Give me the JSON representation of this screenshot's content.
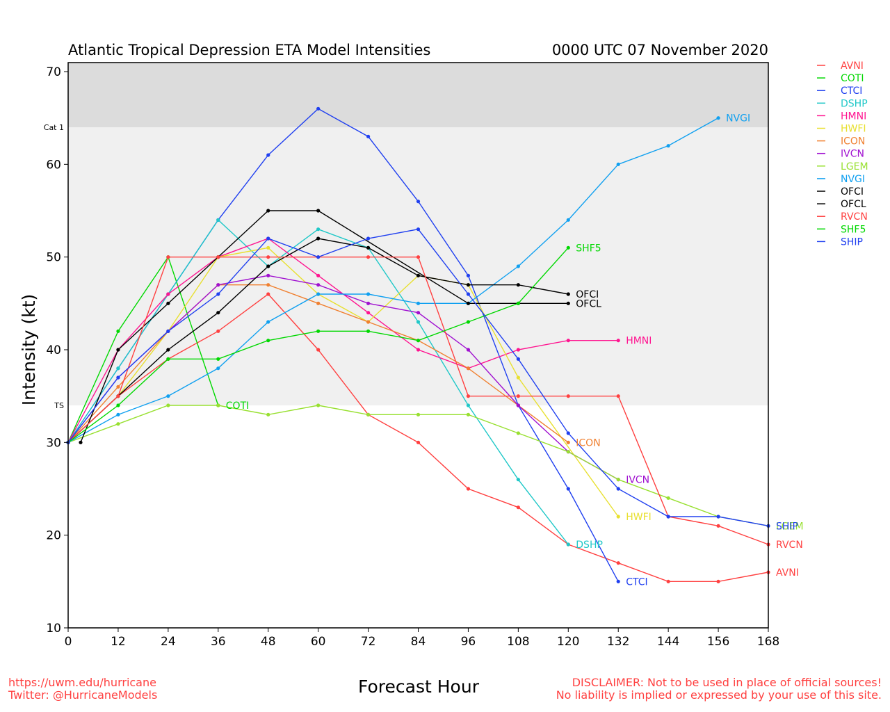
{
  "chart_data": {
    "type": "line",
    "title": "Atlantic Tropical Depression ETA Model Intensities",
    "subtitle": "0000 UTC 07 November 2020",
    "xlabel": "Forecast Hour",
    "ylabel": "Intensity (kt)",
    "xlim": [
      0,
      168
    ],
    "ylim": [
      10,
      72
    ],
    "xticks": [
      0,
      12,
      24,
      36,
      48,
      60,
      72,
      84,
      96,
      108,
      120,
      132,
      144,
      156,
      168
    ],
    "yticks": [
      10,
      20,
      30,
      40,
      50,
      60,
      70
    ],
    "thresholds": [
      {
        "label": "TS",
        "value": 34
      },
      {
        "label": "Cat 1",
        "value": 64
      }
    ],
    "band_colors": {
      "ts": "#f0f0f0",
      "cat1": "#dcdcdc"
    },
    "legend_position": "right-outside",
    "series": [
      {
        "name": "AVNI",
        "color": "#ff4040",
        "x": [
          0,
          12,
          24,
          36,
          48,
          60,
          72,
          84,
          96,
          108,
          120,
          132,
          144,
          156,
          168
        ],
        "y": [
          30,
          35,
          39,
          42,
          46,
          40,
          33,
          30,
          25,
          23,
          19,
          17,
          15,
          15,
          16
        ]
      },
      {
        "name": "COTI",
        "color": "#00d800",
        "x": [
          0,
          12,
          24,
          36
        ],
        "y": [
          30,
          42,
          50,
          34
        ]
      },
      {
        "name": "CTCI",
        "color": "#2040f0",
        "x": [
          0,
          12,
          24,
          36,
          48,
          60,
          72,
          84,
          96,
          108,
          120,
          132
        ],
        "y": [
          30,
          38,
          46,
          54,
          61,
          66,
          63,
          56,
          48,
          34,
          25,
          15
        ]
      },
      {
        "name": "DSHP",
        "color": "#20c8c8",
        "x": [
          0,
          12,
          24,
          36,
          48,
          60,
          72,
          84,
          96,
          108,
          120
        ],
        "y": [
          30,
          38,
          46,
          54,
          49,
          53,
          51,
          43,
          34,
          26,
          19
        ]
      },
      {
        "name": "HMNI",
        "color": "#ff1490",
        "x": [
          0,
          12,
          24,
          36,
          48,
          60,
          72,
          84,
          96,
          108,
          120,
          132
        ],
        "y": [
          30,
          40,
          46,
          50,
          52,
          48,
          44,
          40,
          38,
          40,
          41,
          41
        ]
      },
      {
        "name": "HWFI",
        "color": "#e8e030",
        "x": [
          0,
          12,
          24,
          36,
          48,
          60,
          72,
          84,
          96,
          108,
          132
        ],
        "y": [
          30,
          35,
          42,
          50,
          51,
          46,
          43,
          48,
          47,
          37,
          22
        ]
      },
      {
        "name": "ICON",
        "color": "#f08030",
        "x": [
          0,
          12,
          24,
          36,
          48,
          60,
          72,
          84,
          96,
          108,
          120
        ],
        "y": [
          30,
          36,
          42,
          47,
          47,
          45,
          43,
          41,
          38,
          34,
          30
        ]
      },
      {
        "name": "IVCN",
        "color": "#a010d0",
        "x": [
          0,
          12,
          24,
          36,
          48,
          60,
          72,
          84,
          96,
          108,
          120,
          132
        ],
        "y": [
          30,
          37,
          42,
          47,
          48,
          47,
          45,
          44,
          40,
          34,
          29,
          26
        ]
      },
      {
        "name": "LGEM",
        "color": "#98e030",
        "x": [
          0,
          12,
          24,
          36,
          48,
          60,
          72,
          84,
          96,
          108,
          120,
          132,
          144,
          156,
          168
        ],
        "y": [
          30,
          32,
          34,
          34,
          33,
          34,
          33,
          33,
          33,
          31,
          29,
          26,
          24,
          22,
          21
        ]
      },
      {
        "name": "NVGI",
        "color": "#10a0f0",
        "x": [
          0,
          12,
          24,
          36,
          48,
          60,
          72,
          84,
          96,
          108,
          120,
          132,
          144,
          156
        ],
        "y": [
          30,
          33,
          35,
          38,
          43,
          46,
          46,
          45,
          45,
          49,
          54,
          60,
          62,
          65
        ]
      },
      {
        "name": "OFCI",
        "color": "#000000",
        "x": [
          0,
          12,
          24,
          36,
          48,
          60,
          72,
          84,
          96,
          108,
          120
        ],
        "y": [
          30,
          35,
          40,
          44,
          49,
          52,
          51,
          48,
          47,
          47,
          46
        ]
      },
      {
        "name": "OFCL",
        "color": "#000000",
        "x": [
          3,
          12,
          24,
          36,
          48,
          60,
          96,
          108,
          120
        ],
        "y": [
          30,
          40,
          45,
          50,
          55,
          55,
          45,
          45,
          45
        ]
      },
      {
        "name": "RVCN",
        "color": "#ff4040",
        "x": [
          0,
          12,
          24,
          36,
          48,
          60,
          72,
          84,
          96,
          108,
          120,
          132,
          144,
          156,
          168
        ],
        "y": [
          30,
          35,
          50,
          50,
          50,
          50,
          50,
          50,
          35,
          35,
          35,
          35,
          22,
          21,
          19
        ]
      },
      {
        "name": "SHF5",
        "color": "#00d800",
        "x": [
          0,
          12,
          24,
          36,
          48,
          60,
          72,
          84,
          96,
          108,
          120
        ],
        "y": [
          30,
          34,
          39,
          39,
          41,
          42,
          42,
          41,
          43,
          45,
          51
        ]
      },
      {
        "name": "SHIP",
        "color": "#2040f0",
        "x": [
          0,
          12,
          24,
          36,
          48,
          60,
          72,
          84,
          96,
          108,
          120,
          132,
          144,
          156,
          168
        ],
        "y": [
          30,
          37,
          42,
          46,
          52,
          50,
          52,
          53,
          46,
          39,
          31,
          25,
          22,
          22,
          21
        ]
      }
    ]
  },
  "footer": {
    "left_line1": "https://uwm.edu/hurricane",
    "left_line2": "Twitter: @HurricaneModels",
    "right_line1": "DISCLAIMER: Not to be used in place of official sources!",
    "right_line2": "No liability is implied or expressed by your use of this site."
  }
}
